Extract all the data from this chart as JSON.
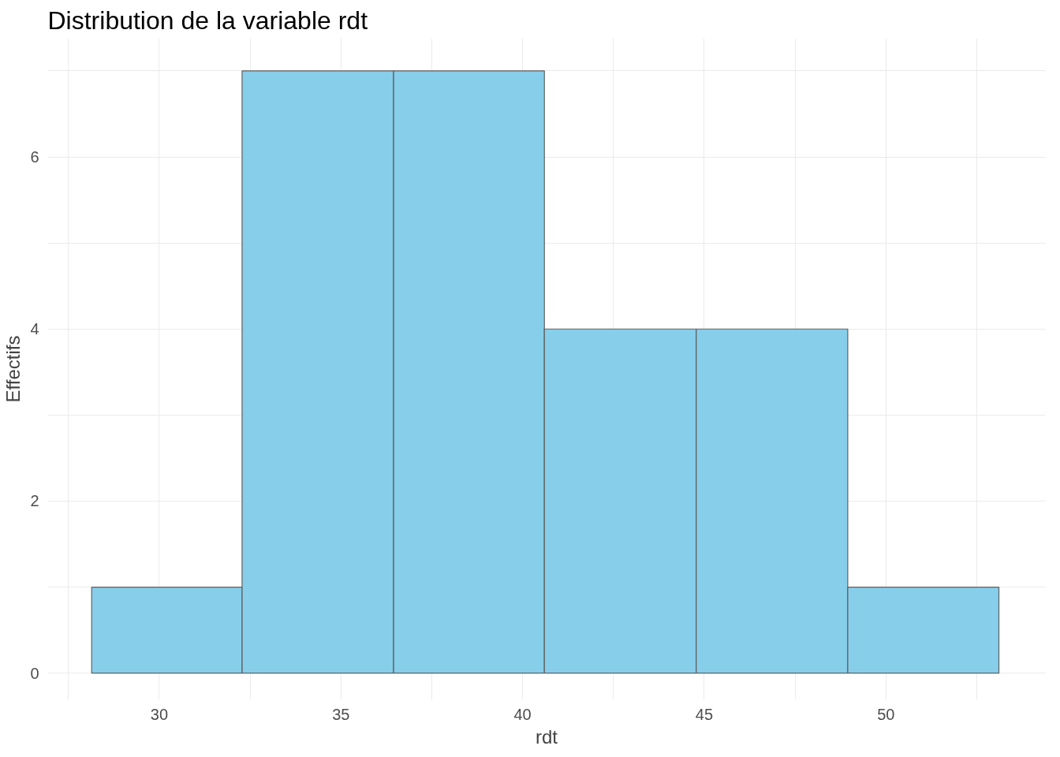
{
  "chart_data": {
    "type": "histogram",
    "title": "Distribution de la variable rdt",
    "xlabel": "rdt",
    "ylabel": "Effectifs",
    "bins": [
      28.14,
      32.28,
      36.45,
      40.6,
      44.78,
      48.95,
      53.11
    ],
    "values": [
      1,
      7,
      7,
      4,
      4,
      1
    ],
    "color": "#87ceeb",
    "xlim": [
      26.93,
      54.39
    ],
    "ylim": [
      -0.31,
      7.38
    ],
    "xticks": [
      {
        "value": 27.5,
        "label": null
      },
      30,
      {
        "value": 32.5,
        "label": null
      },
      35,
      {
        "value": 37.5,
        "label": null
      },
      40,
      {
        "value": 42.5,
        "label": null
      },
      45,
      {
        "value": 47.5,
        "label": null
      },
      50,
      {
        "value": 52.5,
        "label": null
      }
    ],
    "yticks": [
      0,
      {
        "value": 1,
        "label": null
      },
      2,
      {
        "value": 3,
        "label": null
      },
      4,
      {
        "value": 5,
        "label": null
      },
      6,
      {
        "value": 7,
        "label": null
      }
    ],
    "grid": true
  }
}
